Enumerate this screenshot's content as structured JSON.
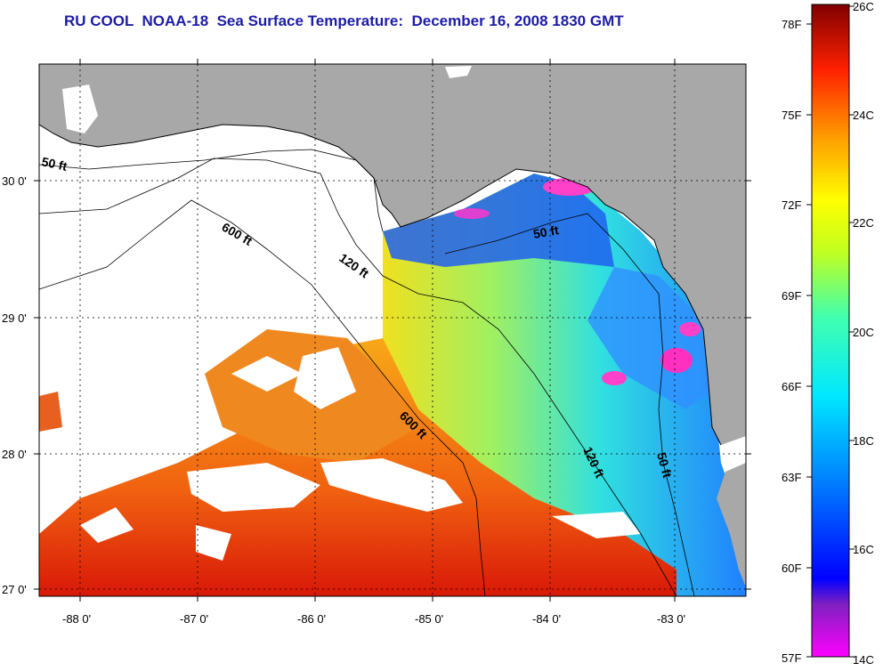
{
  "title": "RU COOL  NOAA-18  Sea Surface Temperature:  December 16, 2008 1830 GMT",
  "map": {
    "lon_ticks": [
      "-88 0'",
      "-87 0'",
      "-86 0'",
      "-85 0'",
      "-84 0'",
      "-83 0'"
    ],
    "lat_ticks": [
      "30 0'",
      "29 0'",
      "28 0'",
      "27 0'"
    ],
    "contours": [
      {
        "label": "50 ft",
        "position": "upper-left"
      },
      {
        "label": "600 ft",
        "position": "upper-left"
      },
      {
        "label": "120 ft",
        "position": "upper-left"
      },
      {
        "label": "50 ft",
        "position": "upper-right"
      },
      {
        "label": "600 ft",
        "position": "center"
      },
      {
        "label": "120 ft",
        "position": "center-right"
      },
      {
        "label": "50 ft",
        "position": "right"
      }
    ],
    "colors": {
      "land": "#a8a8a8",
      "cloud": "#ffffff",
      "grid": "#000000"
    }
  },
  "colorbar": {
    "fahrenheit_labels": [
      "78F",
      "75F",
      "72F",
      "69F",
      "66F",
      "63F",
      "60F",
      "57F"
    ],
    "celsius_labels": [
      "26C",
      "24C",
      "22C",
      "20C",
      "18C",
      "16C",
      "14C"
    ],
    "range_c": [
      14,
      26
    ],
    "range_f": [
      57,
      78
    ]
  }
}
